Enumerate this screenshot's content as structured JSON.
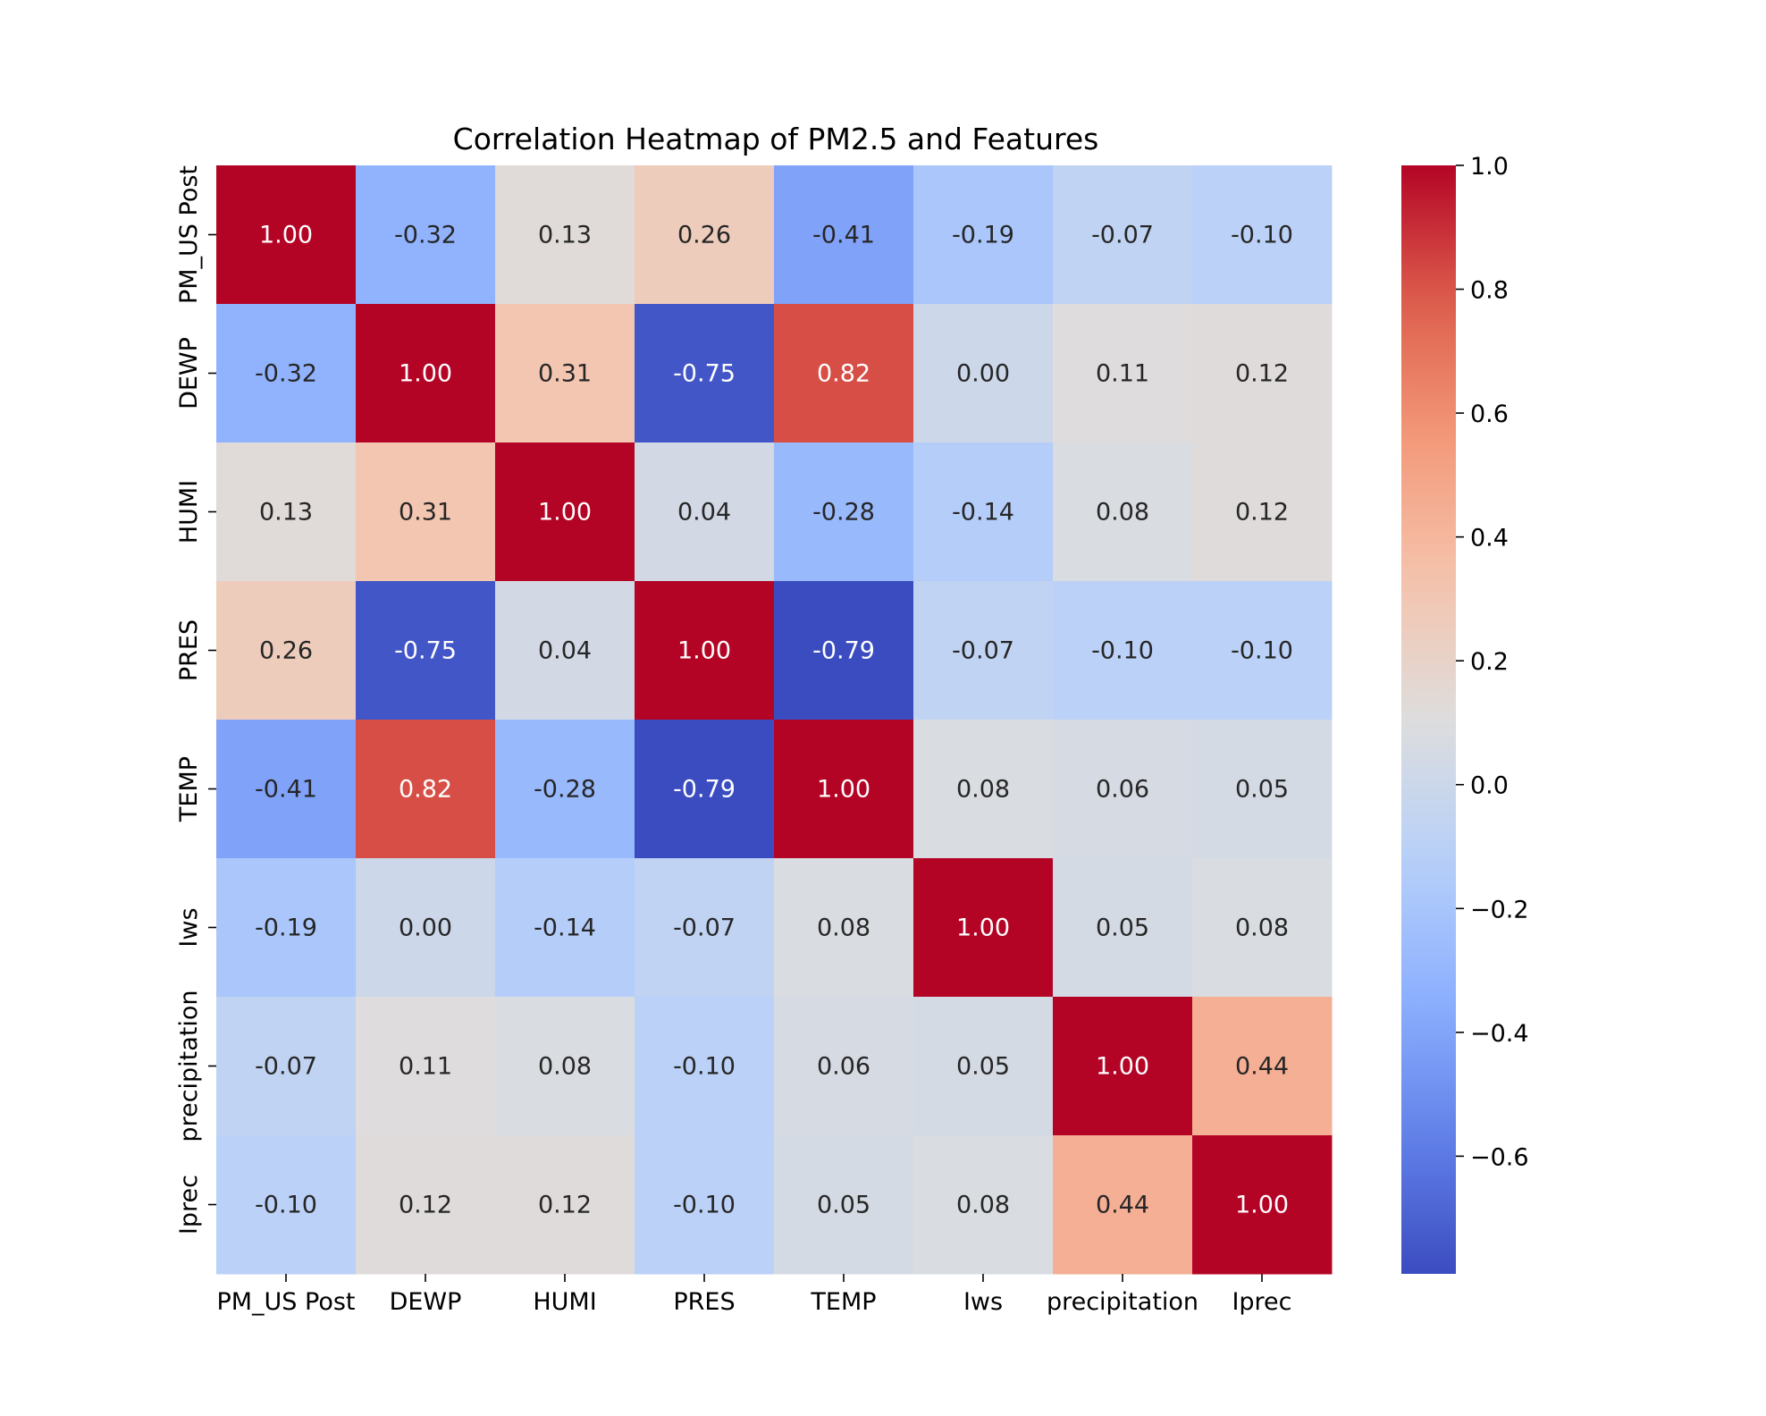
{
  "chart_data": {
    "type": "heatmap",
    "title": "Correlation Heatmap of PM2.5 and Features",
    "xlabel": "",
    "ylabel": "",
    "x_categories": [
      "PM_US Post",
      "DEWP",
      "HUMI",
      "PRES",
      "TEMP",
      "Iws",
      "precipitation",
      "Iprec"
    ],
    "y_categories": [
      "PM_US Post",
      "DEWP",
      "HUMI",
      "PRES",
      "TEMP",
      "Iws",
      "precipitation",
      "Iprec"
    ],
    "values": [
      [
        1.0,
        -0.32,
        0.13,
        0.26,
        -0.41,
        -0.19,
        -0.07,
        -0.1
      ],
      [
        -0.32,
        1.0,
        0.31,
        -0.75,
        0.82,
        -0.0,
        0.11,
        0.12
      ],
      [
        0.13,
        0.31,
        1.0,
        0.04,
        -0.28,
        -0.14,
        0.08,
        0.12
      ],
      [
        0.26,
        -0.75,
        0.04,
        1.0,
        -0.79,
        -0.07,
        -0.1,
        -0.1
      ],
      [
        -0.41,
        0.82,
        -0.28,
        -0.79,
        1.0,
        0.08,
        0.06,
        0.05
      ],
      [
        -0.19,
        -0.0,
        -0.14,
        -0.07,
        0.08,
        1.0,
        0.05,
        0.08
      ],
      [
        -0.07,
        0.11,
        0.08,
        -0.1,
        0.06,
        0.05,
        1.0,
        0.44
      ],
      [
        -0.1,
        0.12,
        0.12,
        -0.1,
        0.05,
        0.08,
        0.44,
        1.0
      ]
    ],
    "value_format": "0.00",
    "colormap": "coolwarm",
    "vmin": -0.79,
    "vmax": 1.0,
    "colorbar": {
      "ticks": [
        "1.0",
        "0.8",
        "0.6",
        "0.4",
        "0.2",
        "0.0",
        "−0.2",
        "−0.4",
        "−0.6"
      ],
      "tick_values": [
        1.0,
        0.8,
        0.6,
        0.4,
        0.2,
        0.0,
        -0.2,
        -0.4,
        -0.6
      ],
      "placement": "right"
    },
    "grid": false
  }
}
